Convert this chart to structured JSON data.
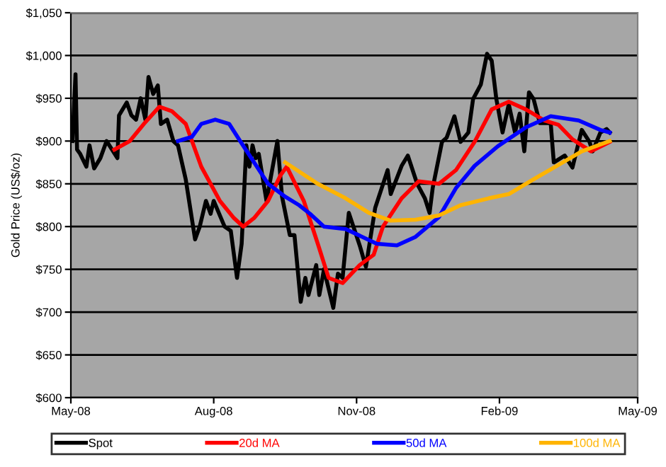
{
  "chart_data": {
    "type": "line",
    "ylabel": "Gold Price (US$/oz)",
    "xlim": [
      "2008-05-01",
      "2009-05-01"
    ],
    "xticks": [
      {
        "value": "2008-05-01",
        "label": "May-08"
      },
      {
        "value": "2008-08-01",
        "label": "Aug-08"
      },
      {
        "value": "2008-11-01",
        "label": "Nov-08"
      },
      {
        "value": "2009-02-01",
        "label": "Feb-09"
      },
      {
        "value": "2009-05-01",
        "label": "May-09"
      }
    ],
    "ylim": [
      600,
      1050
    ],
    "yticks": [
      {
        "value": 600,
        "label": "$600"
      },
      {
        "value": 650,
        "label": "$650"
      },
      {
        "value": 700,
        "label": "$700"
      },
      {
        "value": 750,
        "label": "$750"
      },
      {
        "value": 800,
        "label": "$800"
      },
      {
        "value": 850,
        "label": "$850"
      },
      {
        "value": 900,
        "label": "$900"
      },
      {
        "value": 950,
        "label": "$950"
      },
      {
        "value": 1000,
        "label": "$1,000"
      },
      {
        "value": 1050,
        "label": "$1,050"
      }
    ],
    "grid": "y",
    "legend": "bottom",
    "marker": "none",
    "line_style": "solid",
    "series": [
      {
        "name": "Spot",
        "color": "#000000",
        "x": [
          "2008-05-02",
          "2008-05-04",
          "2008-05-05",
          "2008-05-07",
          "2008-05-11",
          "2008-05-13",
          "2008-05-16",
          "2008-05-20",
          "2008-05-24",
          "2008-05-31",
          "2008-06-01",
          "2008-06-06",
          "2008-06-09",
          "2008-06-12",
          "2008-06-15",
          "2008-06-18",
          "2008-06-20",
          "2008-06-23",
          "2008-06-26",
          "2008-06-28",
          "2008-07-02",
          "2008-07-06",
          "2008-07-09",
          "2008-07-14",
          "2008-07-17",
          "2008-07-20",
          "2008-07-23",
          "2008-07-27",
          "2008-07-30",
          "2008-08-01",
          "2008-08-08",
          "2008-08-12",
          "2008-08-16",
          "2008-08-19",
          "2008-08-22",
          "2008-08-24",
          "2008-08-26",
          "2008-08-28",
          "2008-08-30",
          "2008-09-04",
          "2008-09-11",
          "2008-09-14",
          "2008-09-19",
          "2008-09-22",
          "2008-09-26",
          "2008-09-29",
          "2008-10-01",
          "2008-10-06",
          "2008-10-08",
          "2008-10-11",
          "2008-10-17",
          "2008-10-20",
          "2008-10-23",
          "2008-10-27",
          "2008-11-03",
          "2008-11-07",
          "2008-11-13",
          "2008-11-21",
          "2008-11-23",
          "2008-11-30",
          "2008-12-04",
          "2008-12-10",
          "2008-12-15",
          "2008-12-18",
          "2008-12-20",
          "2008-12-26",
          "2008-12-29",
          "2009-01-03",
          "2009-01-07",
          "2009-01-12",
          "2009-01-15",
          "2009-01-20",
          "2009-01-24",
          "2009-01-27",
          "2009-01-30",
          "2009-02-03",
          "2009-02-07",
          "2009-02-11",
          "2009-02-14",
          "2009-02-17",
          "2009-02-20",
          "2009-02-23",
          "2009-02-27",
          "2009-03-06",
          "2009-03-08",
          "2009-03-15",
          "2009-03-20",
          "2009-03-26",
          "2009-03-31",
          "2009-04-02",
          "2009-04-07",
          "2009-04-11",
          "2009-04-13"
        ],
        "values": [
          900,
          978,
          890,
          885,
          870,
          895,
          868,
          880,
          900,
          880,
          930,
          945,
          930,
          925,
          950,
          925,
          975,
          955,
          965,
          920,
          925,
          900,
          895,
          855,
          820,
          785,
          800,
          830,
          815,
          830,
          800,
          795,
          740,
          780,
          895,
          870,
          895,
          880,
          885,
          830,
          900,
          835,
          790,
          790,
          712,
          740,
          720,
          755,
          720,
          750,
          705,
          745,
          740,
          816,
          778,
          753,
          822,
          866,
          838,
          871,
          883,
          850,
          833,
          816,
          845,
          899,
          904,
          929,
          899,
          910,
          949,
          966,
          1002,
          994,
          949,
          910,
          943,
          910,
          932,
          888,
          957,
          949,
          921,
          921,
          875,
          883,
          869,
          913,
          899,
          888,
          910,
          914,
          910
        ]
      },
      {
        "name": "20d MA",
        "color": "#ff0000",
        "x": [
          "2008-05-29",
          "2008-06-08",
          "2008-06-17",
          "2008-06-27",
          "2008-07-05",
          "2008-07-14",
          "2008-07-24",
          "2008-08-05",
          "2008-08-14",
          "2008-08-20",
          "2008-08-27",
          "2008-09-05",
          "2008-09-13",
          "2008-09-17",
          "2008-09-28",
          "2008-10-07",
          "2008-10-14",
          "2008-10-23",
          "2008-11-03",
          "2008-11-12",
          "2008-11-18",
          "2008-11-30",
          "2008-12-11",
          "2008-12-24",
          "2009-01-04",
          "2009-01-16",
          "2009-01-27",
          "2009-02-07",
          "2009-02-18",
          "2009-03-02",
          "2009-03-11",
          "2009-03-20",
          "2009-04-01",
          "2009-04-13"
        ],
        "values": [
          890,
          900,
          920,
          940,
          935,
          920,
          870,
          830,
          810,
          800,
          810,
          830,
          860,
          870,
          830,
          780,
          740,
          734,
          755,
          767,
          800,
          833,
          853,
          850,
          866,
          899,
          937,
          946,
          937,
          924,
          919,
          902,
          888,
          899
        ]
      },
      {
        "name": "50d MA",
        "color": "#0000ff",
        "x": [
          "2008-07-09",
          "2008-07-18",
          "2008-07-24",
          "2008-08-02",
          "2008-08-11",
          "2008-08-18",
          "2008-08-27",
          "2008-09-05",
          "2008-09-16",
          "2008-09-25",
          "2008-10-02",
          "2008-10-11",
          "2008-10-25",
          "2008-11-14",
          "2008-11-27",
          "2008-12-09",
          "2008-12-24",
          "2009-01-04",
          "2009-01-16",
          "2009-01-31",
          "2009-02-18",
          "2009-03-06",
          "2009-03-24",
          "2009-04-07",
          "2009-04-13"
        ],
        "values": [
          900,
          905,
          920,
          925,
          920,
          900,
          875,
          850,
          835,
          825,
          815,
          800,
          797,
          780,
          778,
          788,
          811,
          845,
          871,
          894,
          916,
          929,
          924,
          913,
          910
        ]
      },
      {
        "name": "100d MA",
        "color": "#ffb400",
        "x": [
          "2008-09-16",
          "2008-10-07",
          "2008-10-25",
          "2008-11-09",
          "2008-11-23",
          "2008-12-09",
          "2008-12-24",
          "2009-01-07",
          "2009-01-25",
          "2009-02-07",
          "2009-02-18",
          "2009-03-08",
          "2009-03-26",
          "2009-04-13"
        ],
        "values": [
          875,
          850,
          833,
          816,
          807,
          808,
          813,
          825,
          833,
          838,
          850,
          869,
          888,
          900
        ]
      }
    ]
  }
}
